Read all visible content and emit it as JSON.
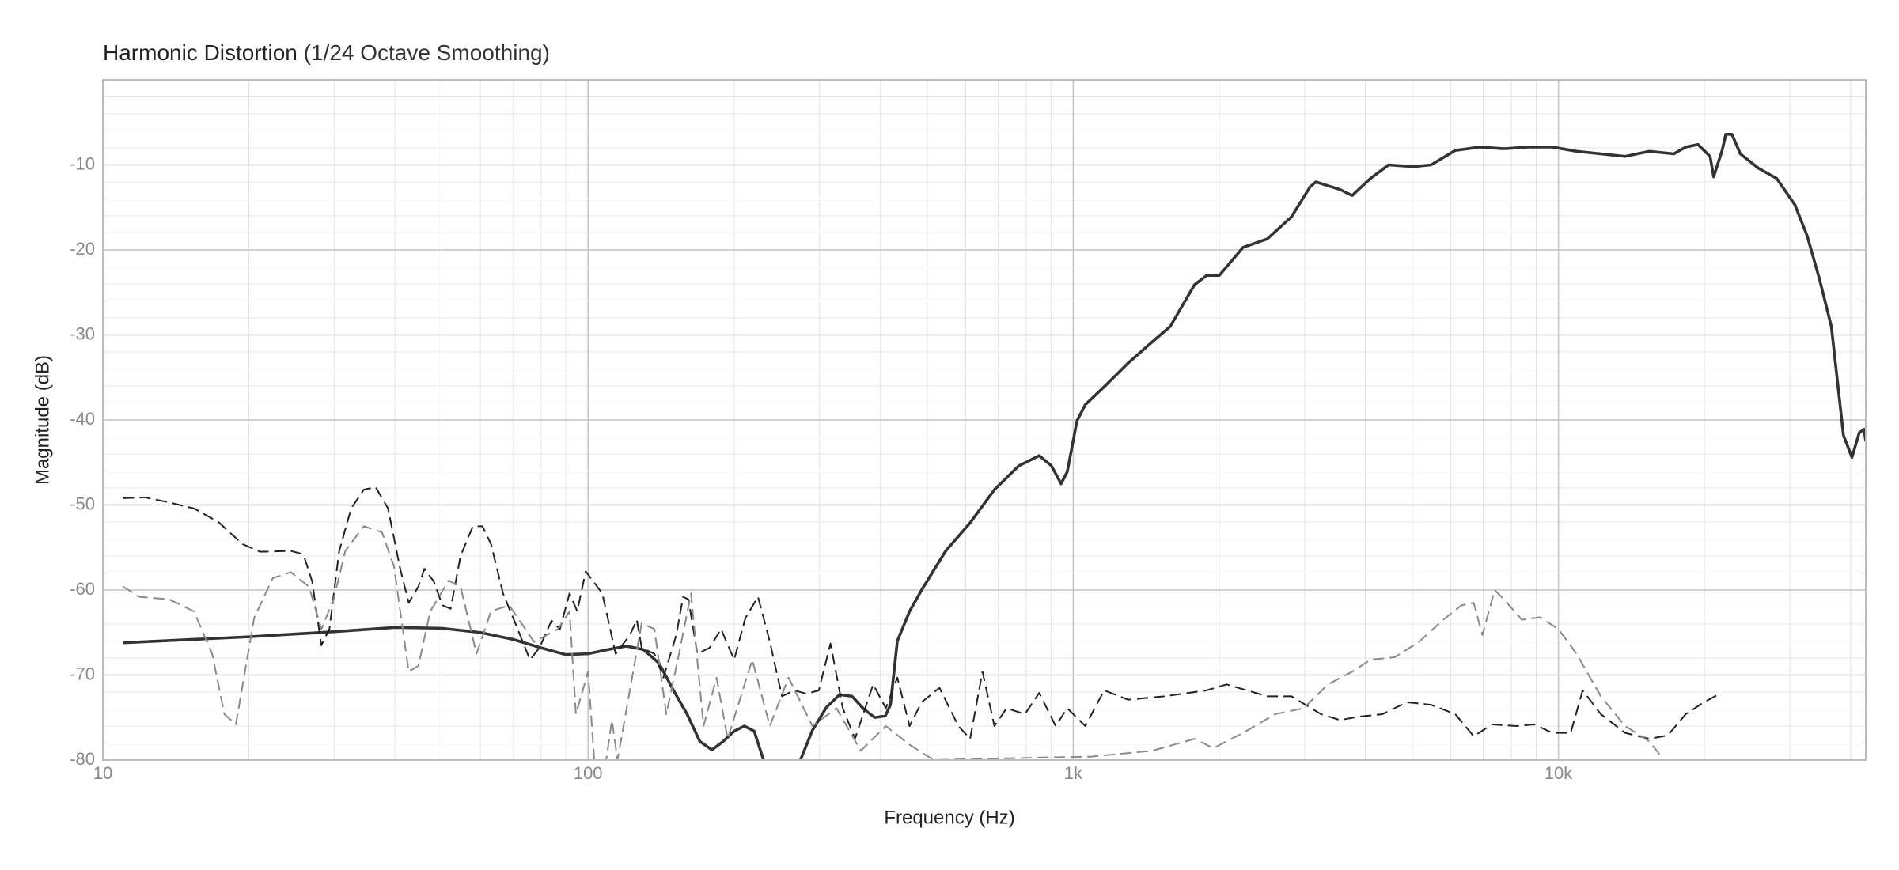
{
  "chart_data": {
    "type": "line",
    "title": "Harmonic Distortion",
    "subtitle": "(1/24 Octave Smoothing)",
    "x_label": "Frequency (Hz)",
    "y_label": "Magnitude (dB)",
    "x_scale": "log",
    "xlim": [
      10,
      43000
    ],
    "ylim": [
      -80,
      0
    ],
    "xticks": [
      10,
      100,
      {
        "value": 1000,
        "label": "1k"
      },
      {
        "value": 10000,
        "label": "10k"
      }
    ],
    "yticks": [
      -80,
      -70,
      -60,
      -50,
      -40,
      -30,
      -20,
      -10
    ],
    "xminor": [
      20,
      30,
      40,
      50,
      60,
      70,
      80,
      90,
      200,
      300,
      400,
      500,
      600,
      700,
      800,
      900,
      2000,
      3000,
      4000,
      5000,
      6000,
      7000,
      8000,
      9000,
      20000,
      30000,
      40000
    ],
    "yminor": [
      -78,
      -76,
      -74,
      -72,
      -68,
      -66,
      -64,
      -62,
      -58,
      -56,
      -54,
      -52,
      -48,
      -46,
      -44,
      -42,
      -38,
      -36,
      -34,
      -32,
      -28,
      -26,
      -24,
      -22,
      -18,
      -16,
      -14,
      -12,
      -8,
      -6,
      -4,
      -2
    ],
    "grid": true,
    "series": [
      {
        "color": "#333333",
        "line_style": "solid",
        "x": [
          11,
          20,
          30,
          40,
          50,
          60,
          70,
          80,
          90,
          100,
          110,
          120,
          130,
          140,
          150,
          160,
          170,
          180,
          190,
          200,
          210,
          220,
          230,
          250,
          274,
          290,
          310,
          330,
          350,
          370,
          390,
          410,
          420,
          434,
          460,
          487,
          546,
          613,
          688,
          772,
          851,
          902,
          944,
          972,
          1018,
          1059,
          1158,
          1298,
          1456,
          1585,
          1778,
          1884,
          2000,
          2239,
          2512,
          2818,
          3076,
          3162,
          3548,
          3758,
          4097,
          4467,
          5012,
          5464,
          6130,
          6879,
          7718,
          8660,
          9716,
          10900,
          12230,
          13720,
          15400,
          17280,
          18300,
          19390,
          20540,
          20890,
          21750,
          22130,
          22780,
          23710,
          25850,
          28180,
          30720,
          32540,
          34470,
          36520,
          38680,
          40270,
          41690,
          42660,
          43000
        ],
        "values": [
          -66.2,
          -65.5,
          -64.9,
          -64.4,
          -64.5,
          -65.0,
          -65.8,
          -66.8,
          -67.6,
          -67.5,
          -67.0,
          -66.6,
          -67.0,
          -68.6,
          -71.8,
          -74.6,
          -77.8,
          -78.8,
          -77.8,
          -76.6,
          -76.0,
          -76.6,
          -80,
          null,
          -80,
          -76.5,
          -73.8,
          -72.3,
          -72.5,
          -74.0,
          -75.0,
          -74.8,
          -73.5,
          -66.0,
          -62.5,
          -60.0,
          -55.4,
          -52.1,
          -48.2,
          -45.4,
          -44.2,
          -45.4,
          -47.5,
          -46.1,
          -40.1,
          -38.2,
          -36.1,
          -33.3,
          -30.8,
          -29.0,
          -24.1,
          -23.0,
          -23.0,
          -19.7,
          -18.7,
          -16.1,
          -12.6,
          -12.0,
          -12.9,
          -13.6,
          -11.6,
          -10.0,
          -10.2,
          -10.0,
          -8.3,
          -7.9,
          -8.1,
          -7.9,
          -7.9,
          -8.4,
          -8.7,
          -9.0,
          -8.4,
          -8.7,
          -7.9,
          -7.6,
          -9.0,
          -11.4,
          -8.3,
          -6.4,
          -6.4,
          -8.7,
          -10.4,
          -11.6,
          -14.7,
          -18.3,
          -23.3,
          -29.0,
          -41.8,
          -44.4,
          -41.5,
          -41.1,
          -42.5
        ]
      },
      {
        "color": "#222222",
        "line_style": "dashed",
        "x": [
          11,
          12.2,
          13.7,
          15.4,
          17.3,
          19.4,
          21.1,
          24.4,
          25.9,
          27,
          28.2,
          29.3,
          30.7,
          32.5,
          34.5,
          36.5,
          38.7,
          41,
          42.7,
          44.7,
          46,
          48.1,
          50.1,
          52.1,
          54.6,
          57.9,
          60.6,
          63.1,
          66.8,
          70.8,
          75.9,
          79.4,
          84.1,
          87.5,
          91.6,
          95,
          98.9,
          107,
          114,
          122,
          126,
          129,
          137,
          143,
          152,
          157,
          161,
          168,
          178,
          188,
          200,
          211,
          224,
          237,
          251,
          266,
          282,
          299,
          316,
          335,
          355,
          370,
          387,
          411,
          434,
          460,
          487,
          530,
          580,
          613,
          650,
          688,
          729,
          795,
          851,
          920,
          972,
          1059,
          1158,
          1298,
          1540,
          1884,
          2070,
          2512,
          2818,
          3240,
          3548,
          3870,
          4340,
          4870,
          5464,
          6130,
          6690,
          7300,
          8190,
          8910,
          9716,
          10600,
          11220,
          12230,
          13720,
          15400,
          16800,
          18300,
          19950,
          21510
        ],
        "values": [
          -49.2,
          -49.1,
          -49.7,
          -50.4,
          -52.0,
          -54.6,
          -55.5,
          -55.4,
          -55.8,
          -59.0,
          -66.5,
          -64.6,
          -55.4,
          -50.4,
          -48.2,
          -47.9,
          -50.4,
          -57.5,
          -61.5,
          -59.6,
          -57.5,
          -59.0,
          -61.8,
          -62.2,
          -56.0,
          -52.5,
          -52.5,
          -54.6,
          -60.4,
          -63.9,
          -68.2,
          -66.8,
          -63.6,
          -64.6,
          -60.4,
          -62.5,
          -57.8,
          -60.4,
          -67.5,
          -65.3,
          -63.5,
          -66.8,
          -67.5,
          -70.3,
          -65.3,
          -60.8,
          -61.1,
          -67.5,
          -66.8,
          -64.6,
          -68.2,
          -63.3,
          -60.8,
          -66.1,
          -72.5,
          -71.8,
          -72.2,
          -71.8,
          -66.3,
          -73.9,
          -77.5,
          -74.4,
          -71.1,
          -73.9,
          -70.3,
          -76.0,
          -73.2,
          -71.5,
          -76.0,
          -77.5,
          -69.6,
          -76.0,
          -73.9,
          -74.6,
          -72.1,
          -76.0,
          -73.9,
          -76.0,
          -71.8,
          -72.9,
          -72.5,
          -71.8,
          -71.1,
          -72.5,
          -72.5,
          -74.6,
          -75.3,
          -74.9,
          -74.6,
          -73.2,
          -73.5,
          -74.6,
          -77.2,
          -75.8,
          -76.0,
          -75.8,
          -76.8,
          -76.8,
          -71.8,
          -74.6,
          -76.8,
          -77.5,
          -77.1,
          -74.6,
          -73.2,
          -72.2
        ]
      },
      {
        "color": "#8a8a8a",
        "line_style": "dashed",
        "x": [
          11,
          11.9,
          13.7,
          15.4,
          16.8,
          17.8,
          18.8,
          20.5,
          22.4,
          24.4,
          26.6,
          28.2,
          29.9,
          31.6,
          34.5,
          37.6,
          39.8,
          42.7,
          44.7,
          47.3,
          51.6,
          54.6,
          58.9,
          63.1,
          68.8,
          77.4,
          86.7,
          91.6,
          94.4,
          100,
          103,
          109,
          112,
          115,
          129,
          137,
          145,
          154,
          163,
          173,
          184,
          194,
          218,
          237,
          259,
          290,
          325,
          365,
          411,
          460,
          516,
          700,
          1085,
          1456,
          1778,
          1944,
          2239,
          2608,
          2985,
          3350,
          3760,
          4097,
          4600,
          5160,
          5790,
          6310,
          6690,
          6970,
          7390,
          7720,
          8410,
          9170,
          10000,
          10900,
          12230,
          13720,
          15400,
          16300
        ],
        "values": [
          -59.6,
          -60.8,
          -61.1,
          -62.5,
          -67.5,
          -74.6,
          -75.8,
          -63.3,
          -58.6,
          -57.9,
          -59.6,
          -64.6,
          -61.1,
          -55.4,
          -52.5,
          -53.2,
          -57.2,
          -69.6,
          -68.9,
          -62.5,
          -58.9,
          -59.6,
          -67.5,
          -62.5,
          -61.8,
          -66.1,
          -64.6,
          -62.5,
          -74.6,
          -69.6,
          -80,
          -80,
          -75.3,
          -80,
          -63.9,
          -64.6,
          -74.6,
          -67.5,
          -60.4,
          -76.0,
          -70.3,
          -77.5,
          -68.2,
          -76.0,
          -70.3,
          -76.0,
          -73.9,
          -78.9,
          -76.0,
          -78.2,
          -80,
          -79.8,
          -79.6,
          -78.9,
          -77.5,
          -78.6,
          -76.8,
          -74.6,
          -73.9,
          -71.1,
          -69.6,
          -68.2,
          -67.9,
          -66.1,
          -63.5,
          -61.8,
          -61.5,
          -65.3,
          -60.0,
          -61.1,
          -63.5,
          -63.2,
          -64.6,
          -67.5,
          -72.5,
          -76.0,
          -77.8,
          -79.6
        ]
      }
    ]
  }
}
